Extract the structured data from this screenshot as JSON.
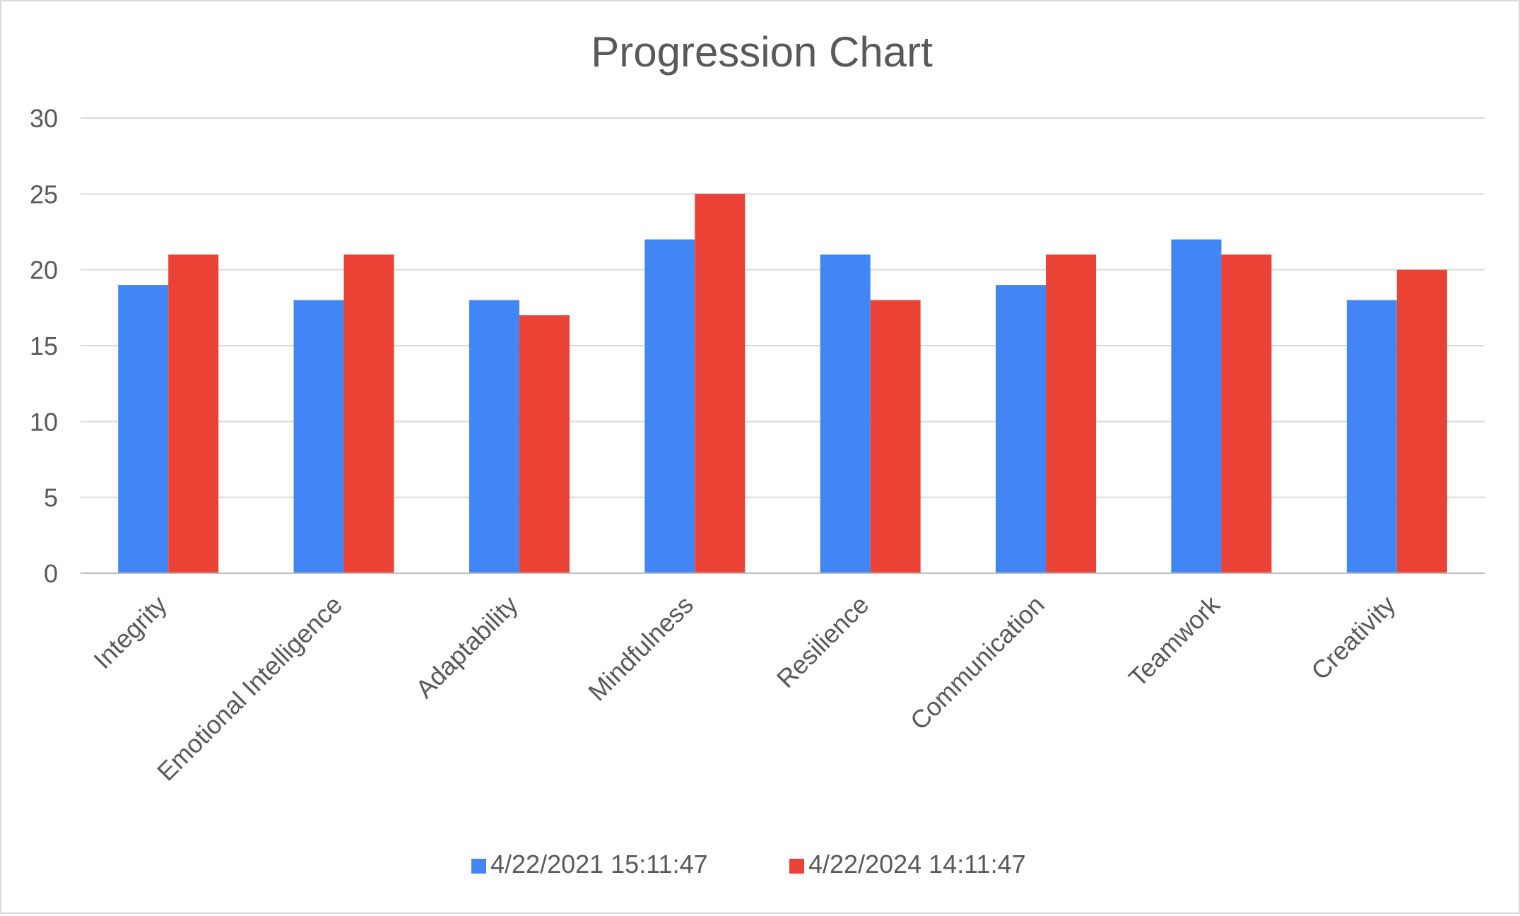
{
  "chart_data": {
    "type": "bar",
    "title": "Progression Chart",
    "xlabel": "",
    "ylabel": "",
    "ylim": [
      0,
      30
    ],
    "yticks": [
      0,
      5,
      10,
      15,
      20,
      25,
      30
    ],
    "grid": true,
    "legend_position": "bottom",
    "categories": [
      "Integrity",
      "Emotional Intelligence",
      "Adaptability",
      "Mindfulness",
      "Resilience",
      "Communication",
      "Teamwork",
      "Creativity"
    ],
    "series": [
      {
        "name": "4/22/2021 15:11:47",
        "color": "#4285f4",
        "values": [
          19,
          18,
          18,
          22,
          21,
          19,
          22,
          18
        ]
      },
      {
        "name": "4/22/2024 14:11:47",
        "color": "#ea4335",
        "values": [
          21,
          21,
          17,
          25,
          18,
          21,
          21,
          20
        ]
      }
    ]
  }
}
